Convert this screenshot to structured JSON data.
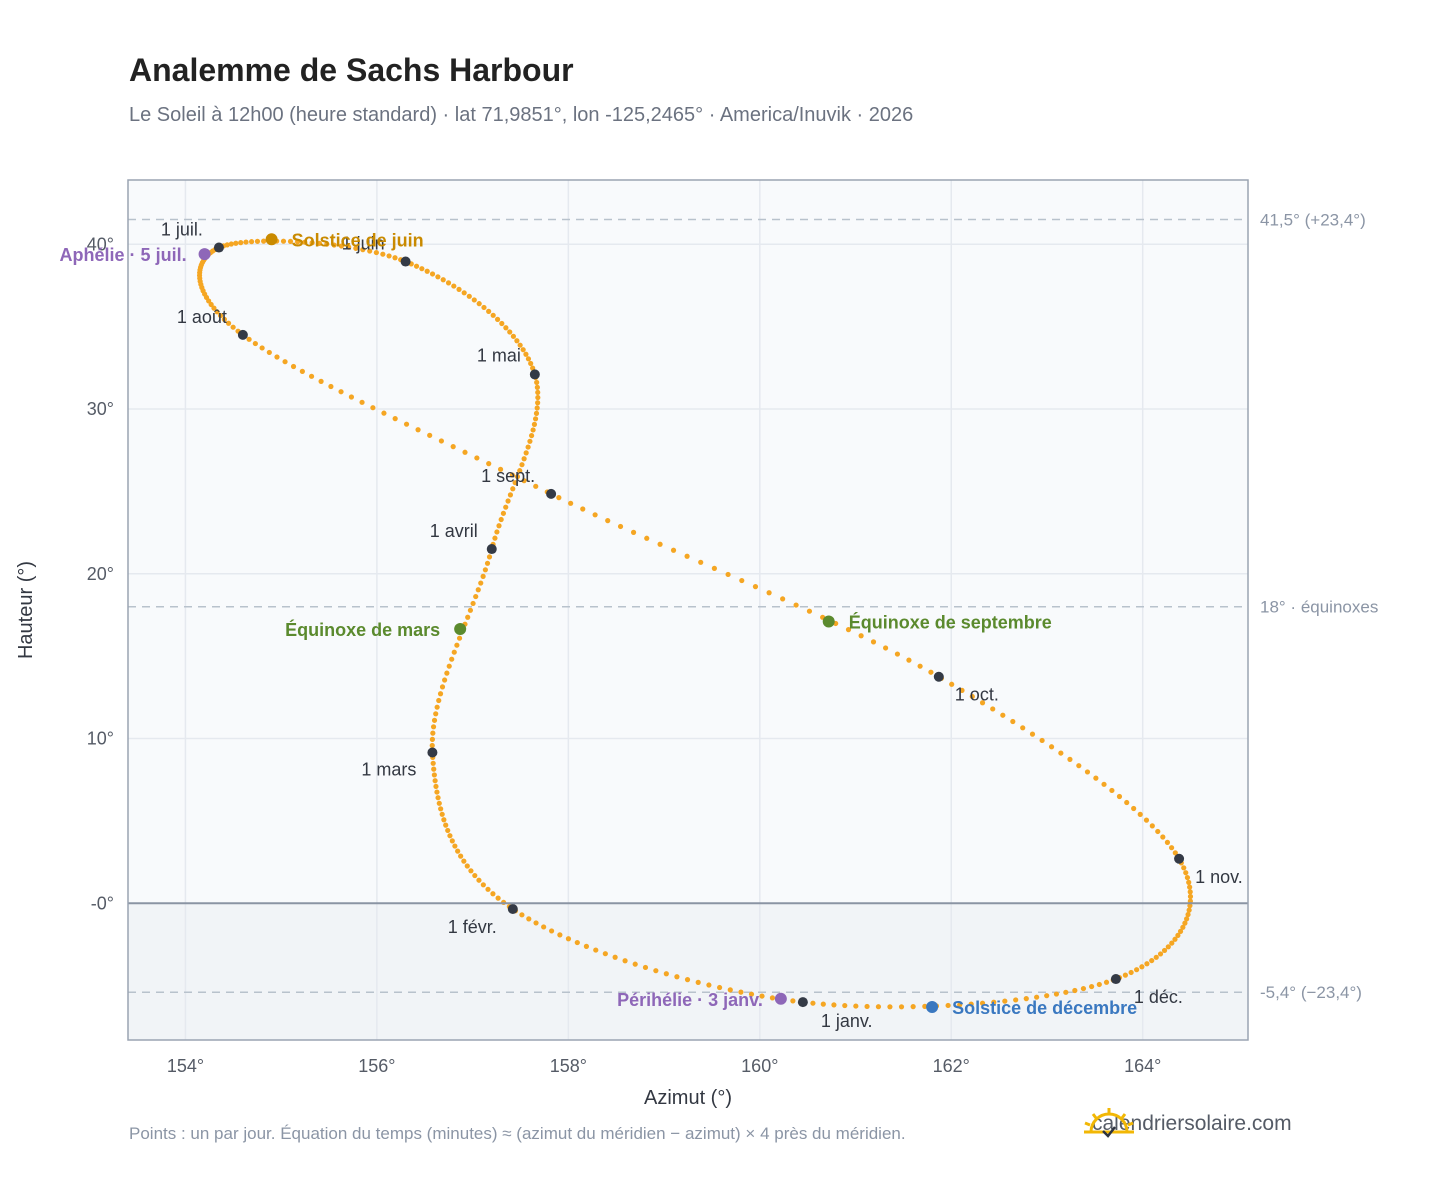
{
  "title": "Analemme de Sachs Harbour",
  "subtitle": "Le Soleil à 12h00 (heure standard) · lat 71,9851°, lon -125,2465° · America/Inuvik · 2026",
  "footnote": "Points : un par jour. Équation du temps (minutes) ≈ (azimut du méridien − azimut) × 4 près du méridien.",
  "brand": "calendriersolaire.com",
  "colors": {
    "curve": "#f5a623",
    "month_point": "#343a46",
    "solstice_june": "#c98a00",
    "solstice_december": "#3a78c0",
    "equinox": "#5b8a2e",
    "apsis": "#8e67b8",
    "plot_bg": "#f8fafc",
    "below_horizon_bg": "#f1f4f7",
    "grid": "#e5e9ef",
    "reference_line": "#b8c2cc"
  },
  "chart_data": {
    "type": "scatter",
    "xlabel": "Azimut (°)",
    "ylabel": "Hauteur (°)",
    "xlim": [
      153.4,
      165.1
    ],
    "ylim": [
      -8.3,
      43.9
    ],
    "xticks": [
      {
        "v": 154,
        "label": "154°"
      },
      {
        "v": 156,
        "label": "156°"
      },
      {
        "v": 158,
        "label": "158°"
      },
      {
        "v": 160,
        "label": "160°"
      },
      {
        "v": 162,
        "label": "162°"
      },
      {
        "v": 164,
        "label": "164°"
      }
    ],
    "yticks": [
      {
        "v": 0,
        "label": "-0°"
      },
      {
        "v": 10,
        "label": "10°"
      },
      {
        "v": 20,
        "label": "20°"
      },
      {
        "v": 30,
        "label": "30°"
      },
      {
        "v": 40,
        "label": "40°"
      }
    ],
    "grid": true,
    "reference_lines": [
      {
        "y": 41.5,
        "label": "41,5° (+23,4°)"
      },
      {
        "y": 18.0,
        "label": "18° · équinoxes"
      },
      {
        "y": -5.4,
        "label": "-5,4° (−23,4°)"
      }
    ],
    "horizon_y": 0,
    "series_note": "un point par jour",
    "month_points": [
      {
        "label": "1 janv.",
        "az": 160.45,
        "alt": -6.0
      },
      {
        "label": "1 févr.",
        "az": 157.42,
        "alt": -0.35
      },
      {
        "label": "1 mars",
        "az": 156.58,
        "alt": 9.15
      },
      {
        "label": "1 avril",
        "az": 157.2,
        "alt": 21.5
      },
      {
        "label": "1 mai",
        "az": 157.65,
        "alt": 32.1
      },
      {
        "label": "1 juin",
        "az": 156.3,
        "alt": 38.95
      },
      {
        "label": "1 juil.",
        "az": 154.35,
        "alt": 39.8
      },
      {
        "label": "1 août",
        "az": 154.6,
        "alt": 34.5
      },
      {
        "label": "1 sept.",
        "az": 157.82,
        "alt": 24.85
      },
      {
        "label": "1 oct.",
        "az": 161.87,
        "alt": 13.75
      },
      {
        "label": "1 nov.",
        "az": 164.38,
        "alt": 2.7
      },
      {
        "label": "1 déc.",
        "az": 163.72,
        "alt": -4.6
      }
    ],
    "events": [
      {
        "label": "Solstice de juin",
        "az": 154.9,
        "alt": 40.3,
        "kind": "solstice_june"
      },
      {
        "label": "Solstice de décembre",
        "az": 161.8,
        "alt": -6.3,
        "kind": "solstice_december"
      },
      {
        "label": "Équinoxe de mars",
        "az": 156.87,
        "alt": 16.65,
        "kind": "equinox"
      },
      {
        "label": "Équinoxe de septembre",
        "az": 160.72,
        "alt": 17.1,
        "kind": "equinox"
      },
      {
        "label": "Aphélie · 5 juil.",
        "az": 154.2,
        "alt": 39.4,
        "kind": "apsis"
      },
      {
        "label": "Périhélie · 3 janv.",
        "az": 160.22,
        "alt": -5.8,
        "kind": "apsis"
      }
    ]
  }
}
